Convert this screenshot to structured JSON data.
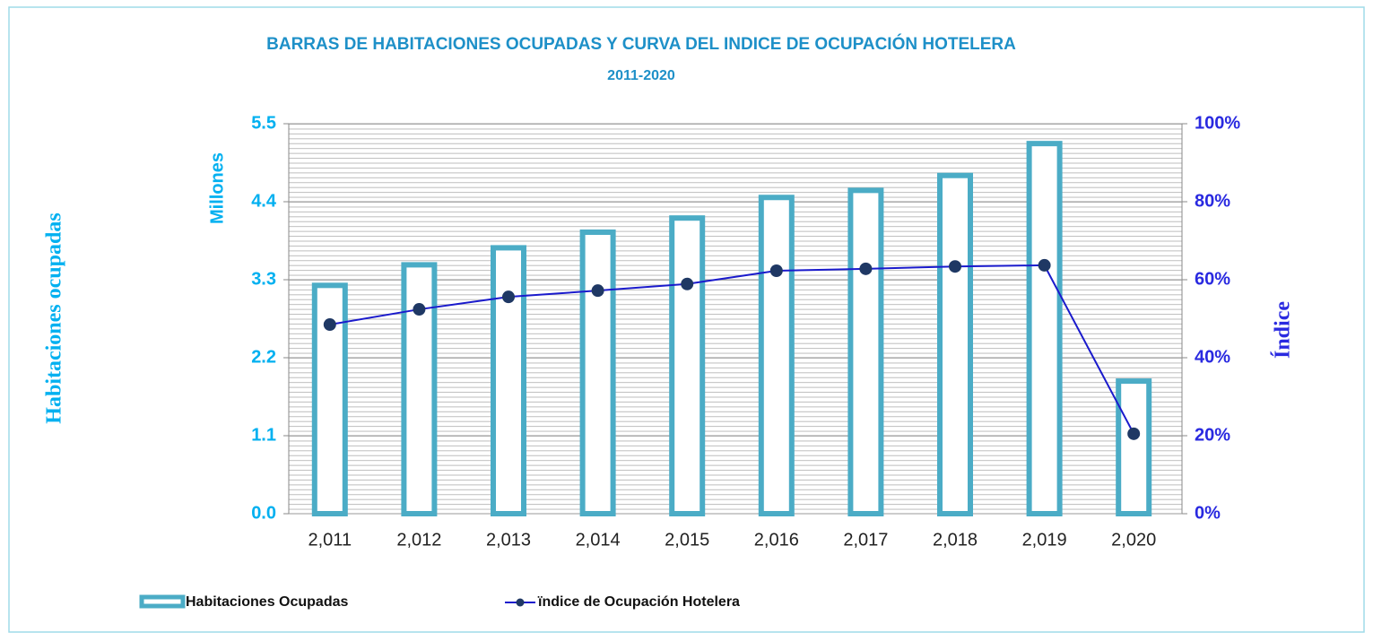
{
  "chart_data": {
    "type": "bar",
    "title": "BARRAS DE HABITACIONES OCUPADAS Y CURVA DEL INDICE DE OCUPACIÓN HOTELERA",
    "subtitle": "2011-2020",
    "y_label": "Habitaciones ocupadas",
    "y_unit_label": "Millones",
    "y2_label": "Índice",
    "categories": [
      "2,011",
      "2,012",
      "2,013",
      "2,014",
      "2,015",
      "2,016",
      "2,017",
      "2,018",
      "2,019",
      "2,020"
    ],
    "series": [
      {
        "name": "Habitaciones Ocupadas",
        "type": "bar",
        "color": "#4bacc6",
        "values": [
          3.22,
          3.51,
          3.75,
          3.97,
          4.17,
          4.46,
          4.56,
          4.77,
          5.22,
          1.87
        ]
      },
      {
        "name": "ïndice de Ocupación Hotelera",
        "type": "line",
        "axis": "y2",
        "color": "#1a1acc",
        "marker_color": "#1f3864",
        "values": [
          48.5,
          52.4,
          55.6,
          57.2,
          58.9,
          62.3,
          62.8,
          63.4,
          63.7,
          20.5
        ]
      }
    ],
    "ylim": [
      0,
      5.5
    ],
    "yticks": [
      {
        "value": 0,
        "label": "0.0"
      },
      1.1,
      2.2,
      3.3,
      4.4,
      5.5
    ],
    "y2lim": [
      0,
      100
    ],
    "y2ticks": [
      {
        "value": 0,
        "label": "0%"
      },
      {
        "value": 20,
        "label": "20%"
      },
      {
        "value": 40,
        "label": "40%"
      },
      {
        "value": 60,
        "label": "60%"
      },
      {
        "value": 80,
        "label": "80%"
      },
      {
        "value": 100,
        "label": "100%"
      }
    ],
    "grid": true,
    "legend": "bottom"
  }
}
